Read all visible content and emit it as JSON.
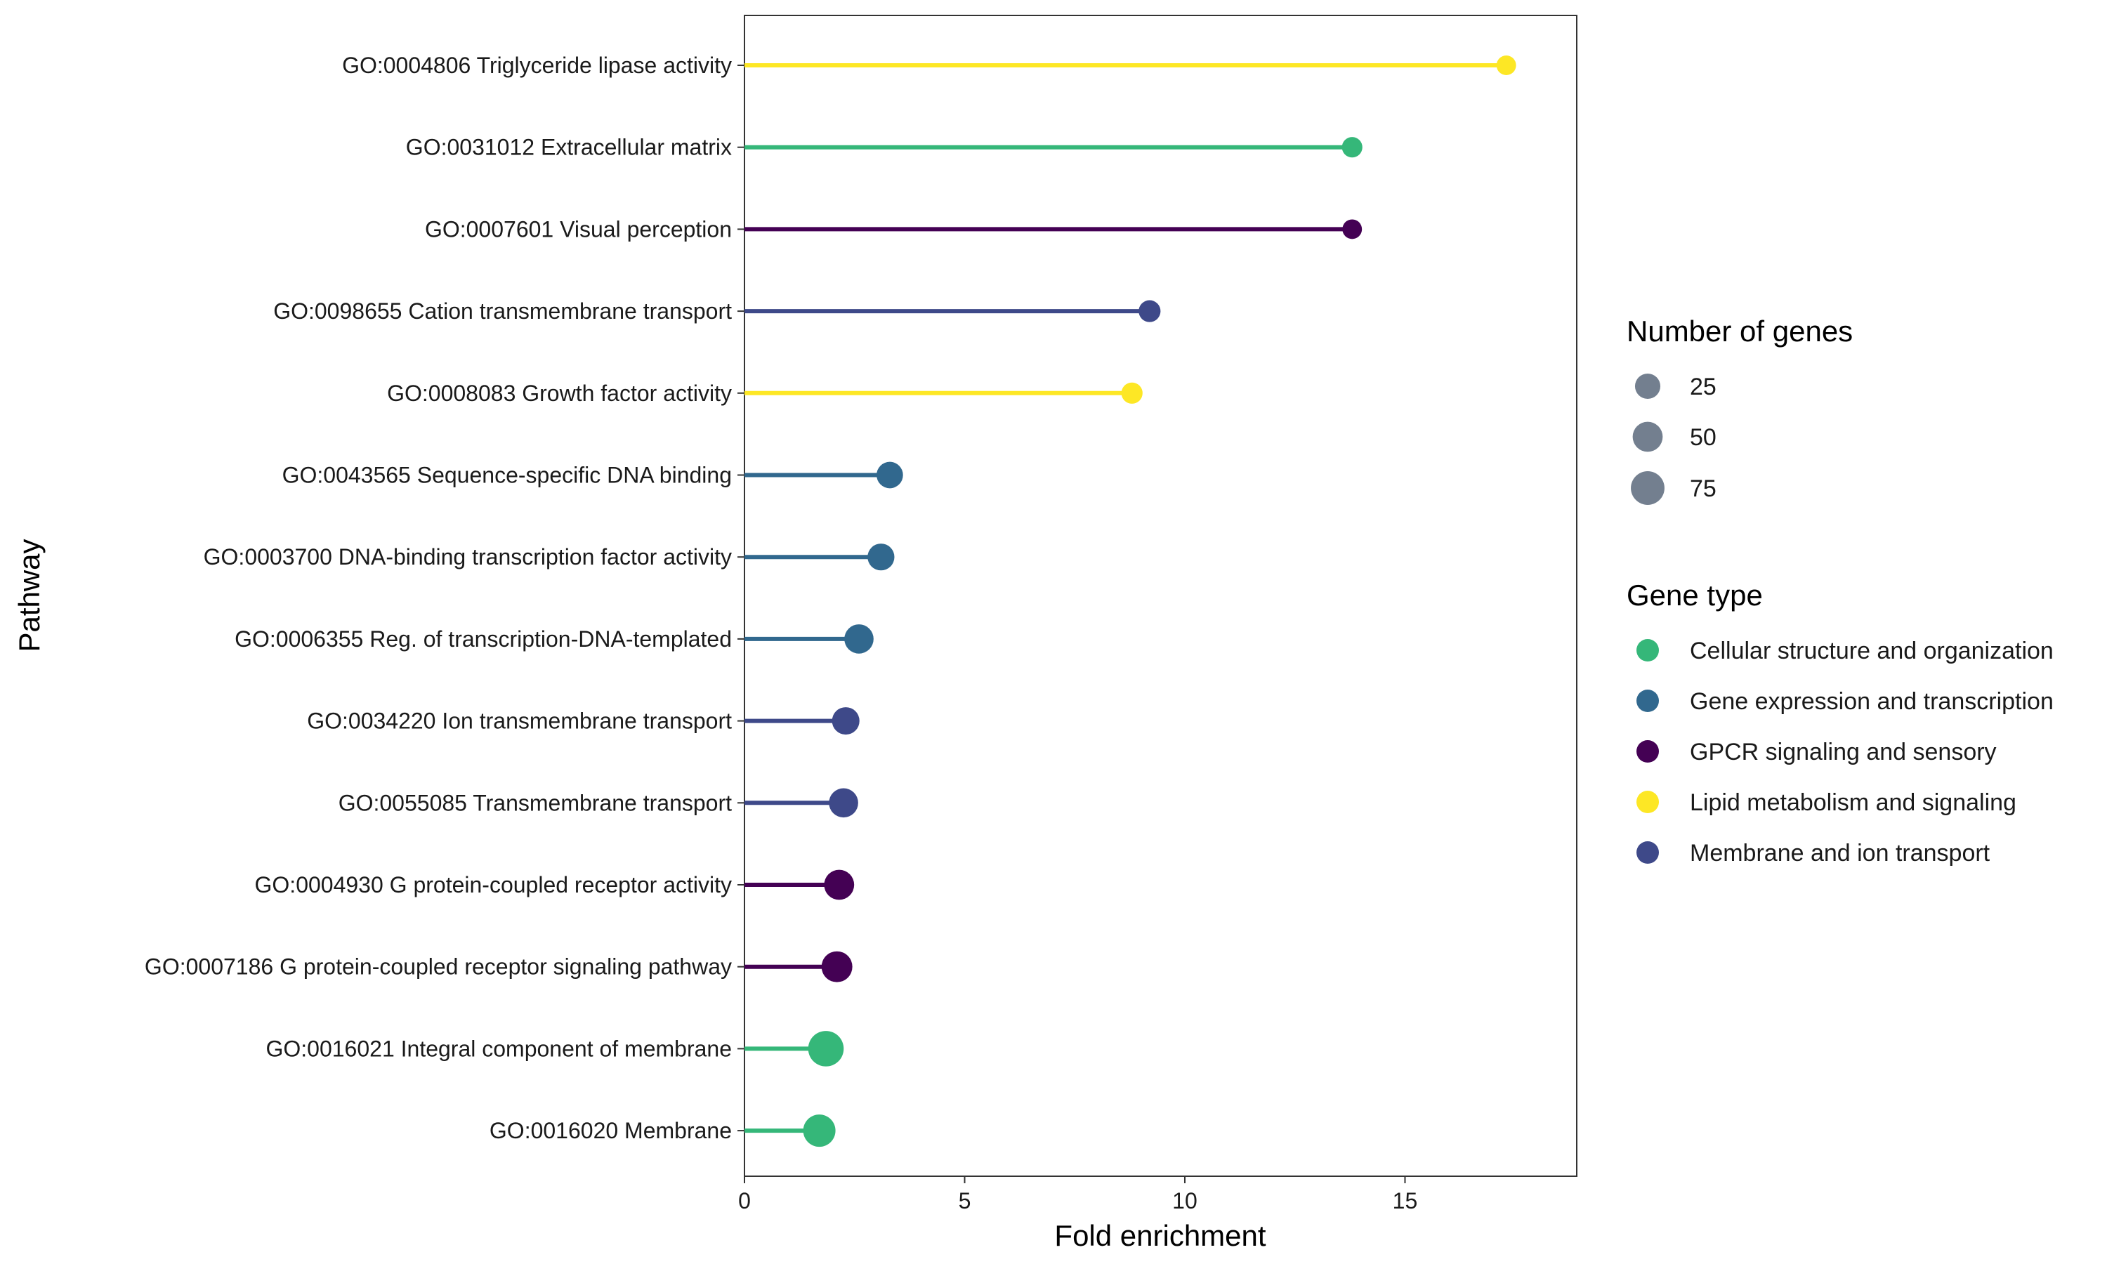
{
  "chart_data": {
    "type": "lollipop",
    "xlabel": "Fold enrichment",
    "ylabel": "Pathway",
    "xlim": [
      0,
      18.9
    ],
    "xticks": [
      0,
      5,
      10,
      15
    ],
    "grid": false,
    "legend_position": "right",
    "categories": [
      "GO:0004806 Triglyceride lipase activity",
      "GO:0031012 Extracellular matrix",
      "GO:0007601 Visual perception",
      "GO:0098655 Cation transmembrane transport",
      "GO:0008083 Growth factor activity",
      "GO:0043565 Sequence-specific DNA binding",
      "GO:0003700 DNA-binding transcription factor activity",
      "GO:0006355 Reg. of transcription-DNA-templated",
      "GO:0034220 Ion transmembrane transport",
      "GO:0055085 Transmembrane transport",
      "GO:0004930 G protein-coupled receptor activity",
      "GO:0007186 G protein-coupled receptor signaling pathway",
      "GO:0016021 Integral component of membrane",
      "GO:0016020 Membrane"
    ],
    "values": [
      17.3,
      13.8,
      13.8,
      9.2,
      8.8,
      3.3,
      3.1,
      2.6,
      2.3,
      2.25,
      2.15,
      2.1,
      1.85,
      1.7
    ],
    "gene_counts": [
      6,
      8,
      6,
      12,
      10,
      30,
      32,
      45,
      35,
      45,
      50,
      55,
      90,
      65
    ],
    "gene_types": [
      "Lipid metabolism and signaling",
      "Cellular structure and organization",
      "GPCR signaling and sensory",
      "Membrane and ion transport",
      "Lipid metabolism and signaling",
      "Gene expression and transcription",
      "Gene expression and transcription",
      "Gene expression and transcription",
      "Membrane and ion transport",
      "Membrane and ion transport",
      "GPCR signaling and sensory",
      "GPCR signaling and sensory",
      "Cellular structure and organization",
      "Cellular structure and organization"
    ],
    "size_legend": {
      "title": "Number of genes",
      "values": [
        25,
        50,
        75
      ],
      "color": "#737f8f"
    },
    "color_legend": {
      "title": "Gene type",
      "entries": [
        {
          "name": "Cellular structure and organization",
          "color": "#35b779"
        },
        {
          "name": "Gene expression and transcription",
          "color": "#31688e"
        },
        {
          "name": "GPCR signaling and sensory",
          "color": "#440154"
        },
        {
          "name": "Lipid metabolism and signaling",
          "color": "#fde725"
        },
        {
          "name": "Membrane and ion transport",
          "color": "#3e4989"
        }
      ]
    }
  }
}
